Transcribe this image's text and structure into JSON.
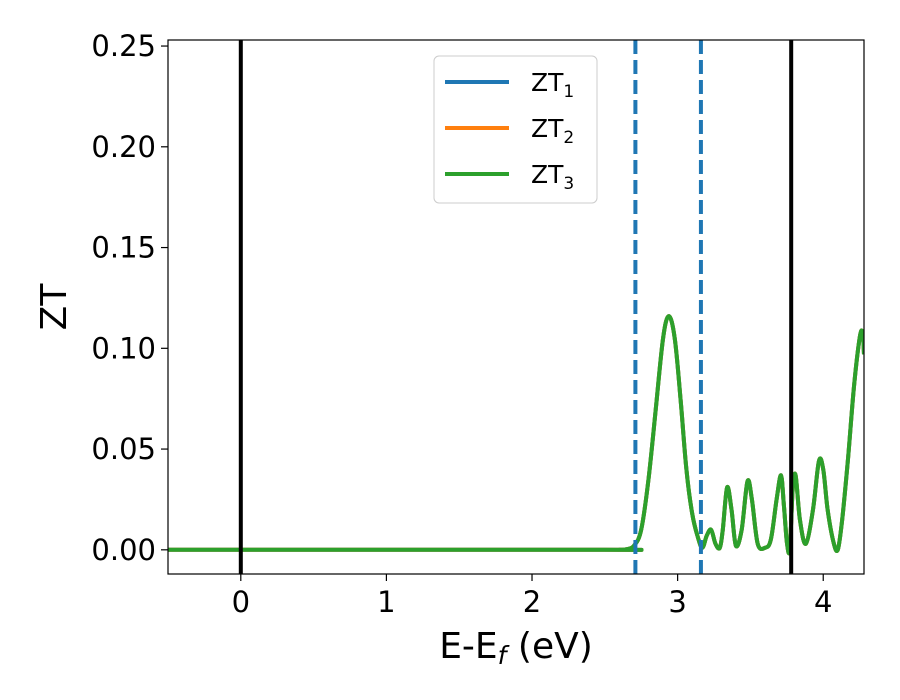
{
  "chart_data": {
    "type": "line",
    "title": "",
    "xlabel": "E-E",
    "xlabel_sub": "f",
    "xlabel_unit": " (eV)",
    "ylabel": "ZT",
    "xlim": [
      -0.5,
      4.28
    ],
    "ylim": [
      -0.012,
      0.253
    ],
    "x_ticks": [
      0,
      1,
      2,
      3,
      4
    ],
    "x_tick_labels": [
      "0",
      "1",
      "2",
      "3",
      "4"
    ],
    "y_ticks": [
      0.0,
      0.05,
      0.1,
      0.15,
      0.2,
      0.25
    ],
    "y_tick_labels": [
      "0.00",
      "0.05",
      "0.10",
      "0.15",
      "0.20",
      "0.25"
    ],
    "grid": false,
    "legend_position": "top-center",
    "series": [
      {
        "name": "ZT",
        "sub": "1",
        "color": "#1f77b4"
      },
      {
        "name": "ZT",
        "sub": "2",
        "color": "#ff7f0e"
      },
      {
        "name": "ZT",
        "sub": "3",
        "color": "#2ca02c"
      }
    ],
    "curve": {
      "x": [
        -0.5,
        2.5,
        2.6,
        2.65,
        2.7,
        2.75,
        2.8,
        2.85,
        2.9,
        2.94,
        2.98,
        3.02,
        3.06,
        3.1,
        3.14,
        3.17,
        3.2,
        3.23,
        3.26,
        3.29,
        3.31,
        3.34,
        3.37,
        3.4,
        3.44,
        3.48,
        3.51,
        3.55,
        3.6,
        3.64,
        3.68,
        3.71,
        3.73,
        3.75,
        3.77,
        3.79,
        3.81,
        3.84,
        3.88,
        3.93,
        3.97,
        4.0,
        4.03,
        4.07,
        4.1,
        4.13,
        4.17,
        4.21,
        4.25,
        4.27,
        4.28
      ],
      "y": [
        0.0,
        0.0,
        0.0,
        0.0003,
        0.002,
        0.01,
        0.035,
        0.07,
        0.105,
        0.116,
        0.105,
        0.075,
        0.04,
        0.018,
        0.006,
        0.001,
        0.007,
        0.01,
        0.003,
        0.001,
        0.01,
        0.031,
        0.02,
        0.002,
        0.01,
        0.034,
        0.025,
        0.003,
        0.001,
        0.005,
        0.025,
        0.037,
        0.022,
        0.004,
        0.0,
        0.03,
        0.037,
        0.015,
        0.003,
        0.02,
        0.044,
        0.04,
        0.02,
        0.004,
        0.0,
        0.015,
        0.045,
        0.08,
        0.105,
        0.108,
        0.097
      ]
    },
    "vlines": [
      {
        "x": 0.0,
        "style": "solid",
        "color": "#000000"
      },
      {
        "x": 3.78,
        "style": "solid",
        "color": "#000000"
      },
      {
        "x": 2.71,
        "style": "dashed",
        "color": "#1f77b4"
      },
      {
        "x": 3.16,
        "style": "dashed",
        "color": "#1f77b4"
      }
    ]
  }
}
